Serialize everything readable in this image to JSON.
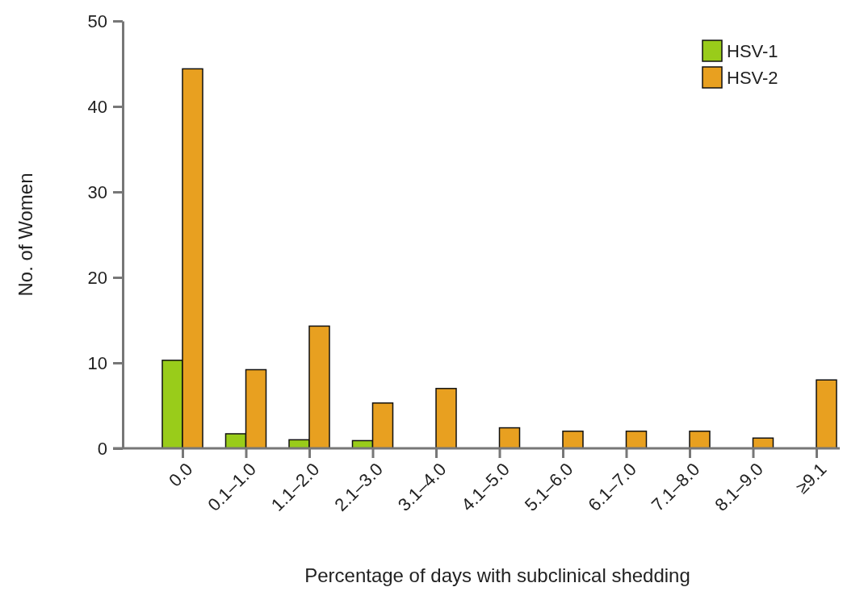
{
  "chart_data": {
    "type": "bar",
    "xlabel": "Percentage of days with subclinical shedding",
    "ylabel": "No. of Women",
    "categories": [
      "0.0",
      "0.1–1.0",
      "1.1–2.0",
      "2.1–3.0",
      "3.1–4.0",
      "4.1–5.0",
      "5.1–6.0",
      "6.1–7.0",
      "7.1–8.0",
      "8.1–9.0",
      "≥9.1"
    ],
    "series": [
      {
        "name": "HSV-1",
        "color": "#99cc1a",
        "values": [
          10.3,
          1.7,
          1.0,
          0.9,
          null,
          null,
          null,
          null,
          null,
          null,
          null
        ]
      },
      {
        "name": "HSV-2",
        "color": "#e8a020",
        "values": [
          44.4,
          9.2,
          14.3,
          5.3,
          7.0,
          2.4,
          2.0,
          2.0,
          2.0,
          1.2,
          8.0
        ]
      }
    ],
    "ylim": [
      0,
      50
    ],
    "yticks": [
      0,
      10,
      20,
      30,
      40,
      50
    ],
    "legend": "top right"
  }
}
